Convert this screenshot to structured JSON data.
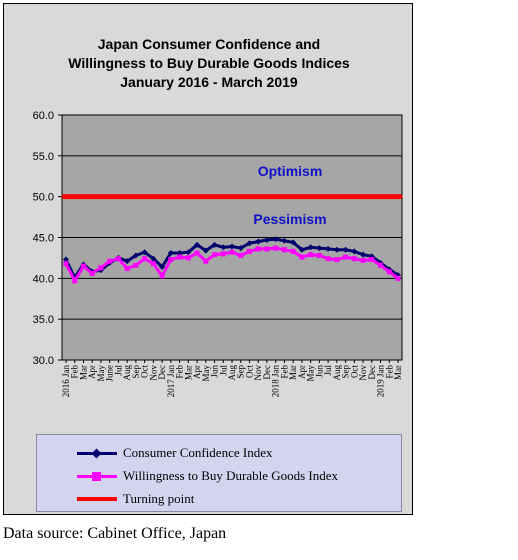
{
  "title": {
    "line1": "Japan Consumer Confidence and",
    "line2": "Willingness to Buy Durable Goods Indices",
    "line3": "January 2016 - March 2019"
  },
  "source": "Data source: Cabinet Office, Japan",
  "colors": {
    "cci": "#00006e",
    "wtb": "#ff00ff",
    "turning": "#ff0000",
    "optimism": "#1010c8",
    "plot_bg": "#a6a6a6",
    "frame_bg": "#d9d9d9",
    "legend_bg": "#d4d4f0"
  },
  "chart_data": {
    "type": "line",
    "y_ticks": [
      "60.0",
      "55.0",
      "50.0",
      "45.0",
      "40.0",
      "35.0",
      "30.0"
    ],
    "ylim": [
      30,
      60
    ],
    "grid": true,
    "annotations": {
      "optimism": "Optimism",
      "pessimism": "Pessimism"
    },
    "x_labels": [
      "2016 Jan",
      "Feb",
      "Mar",
      "Apr",
      "May",
      "June",
      "Jul",
      "Aug",
      "Sep",
      "Oct",
      "Nov",
      "Dec",
      "2017 Jan",
      "Feb",
      "Mar",
      "Apr",
      "May",
      "Jun",
      "Jul",
      "Aug",
      "Sep",
      "Oct",
      "Nov",
      "Dec",
      "2018 Jan",
      "Feb",
      "Mar",
      "Apr",
      "May",
      "Jun",
      "Jul",
      "Aug",
      "Sep",
      "Oct",
      "Nov",
      "Dec",
      "2019 Jan",
      "Feb",
      "Mar"
    ],
    "legend_placement": "bottom",
    "series": [
      {
        "name": "Consumer Confidence Index",
        "key": "cci",
        "values": [
          42.3,
          40.1,
          41.7,
          40.8,
          41.0,
          41.9,
          42.5,
          42.1,
          42.8,
          43.2,
          42.4,
          41.4,
          43.1,
          43.1,
          43.2,
          44.1,
          43.4,
          44.1,
          43.8,
          43.9,
          43.7,
          44.3,
          44.5,
          44.7,
          44.8,
          44.6,
          44.4,
          43.5,
          43.8,
          43.7,
          43.6,
          43.5,
          43.5,
          43.3,
          42.9,
          42.7,
          41.9,
          41.1,
          40.4
        ]
      },
      {
        "name": "Willingness to Buy Durable Goods Index",
        "key": "wtb",
        "values": [
          41.8,
          39.7,
          41.5,
          40.6,
          41.3,
          42.1,
          42.4,
          41.2,
          41.6,
          42.4,
          41.8,
          40.3,
          42.3,
          42.6,
          42.5,
          43.1,
          42.1,
          42.9,
          43.0,
          43.2,
          42.8,
          43.3,
          43.6,
          43.6,
          43.7,
          43.5,
          43.3,
          42.6,
          42.9,
          42.8,
          42.4,
          42.3,
          42.6,
          42.4,
          42.2,
          42.3,
          41.6,
          40.8,
          40.0
        ]
      },
      {
        "name": "Turning point",
        "key": "turning",
        "constant": 50.0
      }
    ]
  }
}
